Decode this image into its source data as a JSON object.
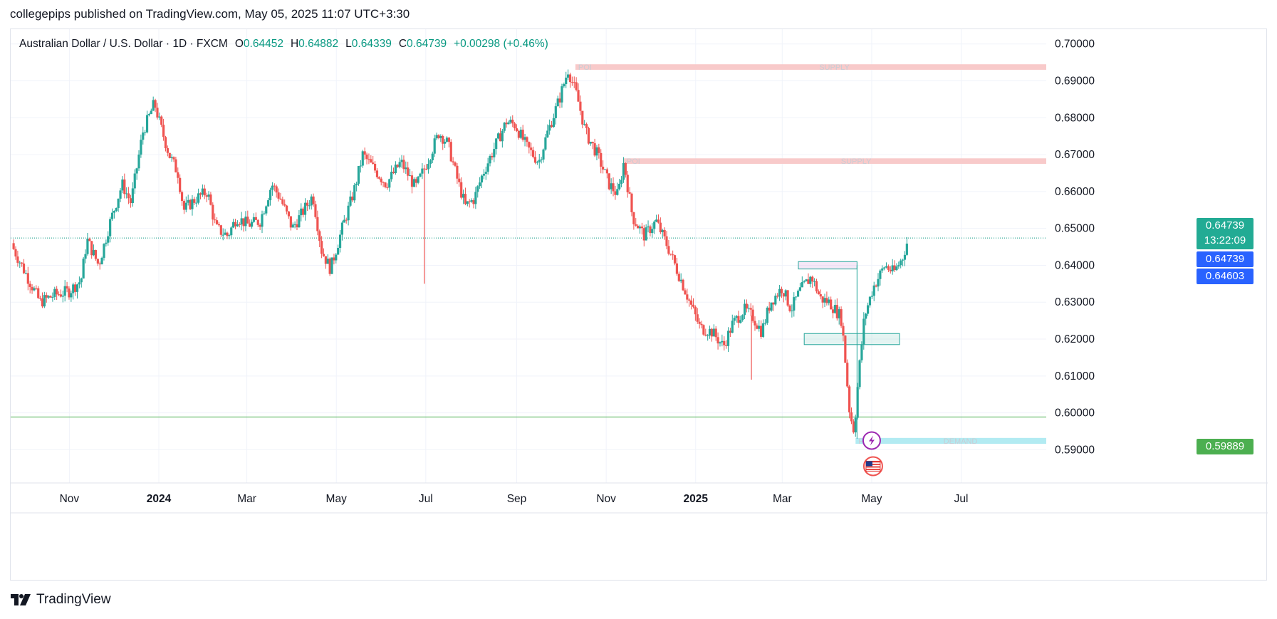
{
  "header": {
    "published_line": "collegepips published on TradingView.com, May 05, 2025 11:07 UTC+3:30"
  },
  "legend": {
    "symbol": "Australian Dollar / U.S. Dollar · 1D · FXCM",
    "open_label": "O",
    "open": "0.64452",
    "high_label": "H",
    "high": "0.64882",
    "low_label": "L",
    "low": "0.64339",
    "close_label": "C",
    "close": "0.64739",
    "change": "+0.00298 (+0.46%)"
  },
  "tags": {
    "last_price": "0.64739",
    "countdown": "13:22:09",
    "last_price_line": "0.64739",
    "prev_level": "0.64603",
    "green_level": "0.59889"
  },
  "zones": {
    "supply_top_label": "SUPPLY",
    "poi_top_label": "POI",
    "supply_mid_label": "SUPPLY",
    "poi_mid_label": "POI",
    "demand_label": "DEMAND",
    "poi_bottom_label": "POI"
  },
  "footer": {
    "brand": "TradingView"
  },
  "colors": {
    "up": "#26a69a",
    "down": "#ef5350",
    "supply": "#f8caca",
    "demand": "#b2ebf2",
    "last_tag": "#22ab94",
    "blue_tag": "#2962ff",
    "green_line": "#4caf50"
  },
  "icons": [
    "lightning-event-icon",
    "us-flag-icon"
  ],
  "chart_data": {
    "type": "candlestick",
    "title": "Australian Dollar / U.S. Dollar · 1D · FXCM",
    "xlabel": "",
    "ylabel": "",
    "ylim": [
      0.581,
      0.704
    ],
    "y_ticks": [
      "0.70000",
      "0.69000",
      "0.68000",
      "0.67000",
      "0.66000",
      "0.65000",
      "0.64000",
      "0.63000",
      "0.62000",
      "0.61000",
      "0.60000",
      "0.59000"
    ],
    "x_ticks": [
      {
        "label": "Nov",
        "day": 0,
        "bold": false
      },
      {
        "label": "2024",
        "day": 61,
        "bold": true
      },
      {
        "label": "Mar",
        "day": 121,
        "bold": false
      },
      {
        "label": "May",
        "day": 182,
        "bold": false
      },
      {
        "label": "Jul",
        "day": 243,
        "bold": false
      },
      {
        "label": "Sep",
        "day": 305,
        "bold": false
      },
      {
        "label": "Nov",
        "day": 366,
        "bold": false
      },
      {
        "label": "2025",
        "day": 427,
        "bold": true
      },
      {
        "label": "Mar",
        "day": 486,
        "bold": false
      },
      {
        "label": "May",
        "day": 547,
        "bold": false
      },
      {
        "label": "Jul",
        "day": 608,
        "bold": false
      }
    ],
    "x_range_days": [
      -40,
      666
    ],
    "price_path": [
      [
        -40,
        0.646
      ],
      [
        -30,
        0.638
      ],
      [
        -20,
        0.63
      ],
      [
        -10,
        0.632
      ],
      [
        0,
        0.633
      ],
      [
        8,
        0.636
      ],
      [
        12,
        0.647
      ],
      [
        20,
        0.64
      ],
      [
        28,
        0.652
      ],
      [
        36,
        0.662
      ],
      [
        42,
        0.657
      ],
      [
        50,
        0.676
      ],
      [
        58,
        0.684
      ],
      [
        62,
        0.678
      ],
      [
        68,
        0.67
      ],
      [
        74,
        0.665
      ],
      [
        78,
        0.655
      ],
      [
        86,
        0.658
      ],
      [
        94,
        0.66
      ],
      [
        100,
        0.65
      ],
      [
        108,
        0.648
      ],
      [
        114,
        0.653
      ],
      [
        122,
        0.651
      ],
      [
        130,
        0.652
      ],
      [
        138,
        0.662
      ],
      [
        144,
        0.658
      ],
      [
        152,
        0.65
      ],
      [
        160,
        0.655
      ],
      [
        166,
        0.659
      ],
      [
        172,
        0.644
      ],
      [
        178,
        0.639
      ],
      [
        186,
        0.65
      ],
      [
        194,
        0.66
      ],
      [
        200,
        0.67
      ],
      [
        208,
        0.666
      ],
      [
        216,
        0.662
      ],
      [
        226,
        0.668
      ],
      [
        236,
        0.661
      ],
      [
        244,
        0.668
      ],
      [
        252,
        0.676
      ],
      [
        258,
        0.673
      ],
      [
        264,
        0.664
      ],
      [
        270,
        0.656
      ],
      [
        276,
        0.658
      ],
      [
        282,
        0.665
      ],
      [
        290,
        0.672
      ],
      [
        298,
        0.679
      ],
      [
        304,
        0.678
      ],
      [
        312,
        0.672
      ],
      [
        320,
        0.668
      ],
      [
        326,
        0.676
      ],
      [
        334,
        0.685
      ],
      [
        340,
        0.693
      ],
      [
        346,
        0.686
      ],
      [
        352,
        0.676
      ],
      [
        360,
        0.67
      ],
      [
        368,
        0.662
      ],
      [
        374,
        0.659
      ],
      [
        378,
        0.668
      ],
      [
        384,
        0.653
      ],
      [
        392,
        0.648
      ],
      [
        400,
        0.652
      ],
      [
        408,
        0.645
      ],
      [
        416,
        0.637
      ],
      [
        424,
        0.629
      ],
      [
        430,
        0.623
      ],
      [
        438,
        0.622
      ],
      [
        446,
        0.618
      ],
      [
        452,
        0.624
      ],
      [
        460,
        0.628
      ],
      [
        466,
        0.626
      ],
      [
        472,
        0.622
      ],
      [
        478,
        0.63
      ],
      [
        486,
        0.634
      ],
      [
        492,
        0.628
      ],
      [
        498,
        0.633
      ],
      [
        506,
        0.637
      ],
      [
        512,
        0.631
      ],
      [
        518,
        0.63
      ],
      [
        526,
        0.626
      ],
      [
        528,
        0.619
      ],
      [
        532,
        0.6
      ],
      [
        535,
        0.595
      ],
      [
        538,
        0.61
      ],
      [
        542,
        0.626
      ],
      [
        548,
        0.634
      ],
      [
        556,
        0.64
      ],
      [
        562,
        0.638
      ],
      [
        568,
        0.642
      ],
      [
        572,
        0.6474
      ]
    ],
    "wicks": [
      {
        "day": 242,
        "low": 0.635
      },
      {
        "day": 465,
        "low": 0.609
      }
    ],
    "last_price": 0.64739,
    "horizontal_levels": [
      {
        "name": "last-price-line",
        "value": 0.64739,
        "color": "#089981",
        "style": "dotted"
      },
      {
        "name": "green-support-line",
        "value": 0.59889,
        "color": "#4caf50",
        "style": "solid"
      }
    ],
    "zones": [
      {
        "name": "supply-zone-top",
        "kind": "supply",
        "low": 0.693,
        "high": 0.6945,
        "from_day": 345,
        "label": "SUPPLY",
        "poi": "POI"
      },
      {
        "name": "supply-zone-mid",
        "kind": "supply",
        "low": 0.6675,
        "high": 0.669,
        "from_day": 378,
        "label": "SUPPLY",
        "poi": "POI"
      },
      {
        "name": "demand-zone-bottom",
        "kind": "demand",
        "low": 0.5916,
        "high": 0.5932,
        "from_day": 536,
        "label": "DEMAND",
        "poi": "POI"
      }
    ],
    "boxes": [
      {
        "name": "resistance-box",
        "low": 0.639,
        "high": 0.641,
        "from_day": 497,
        "to_day": 537,
        "color": "#e1bee7"
      },
      {
        "name": "support-box",
        "low": 0.6185,
        "high": 0.6215,
        "from_day": 501,
        "to_day": 566,
        "color": "#b2dfdb"
      }
    ]
  }
}
